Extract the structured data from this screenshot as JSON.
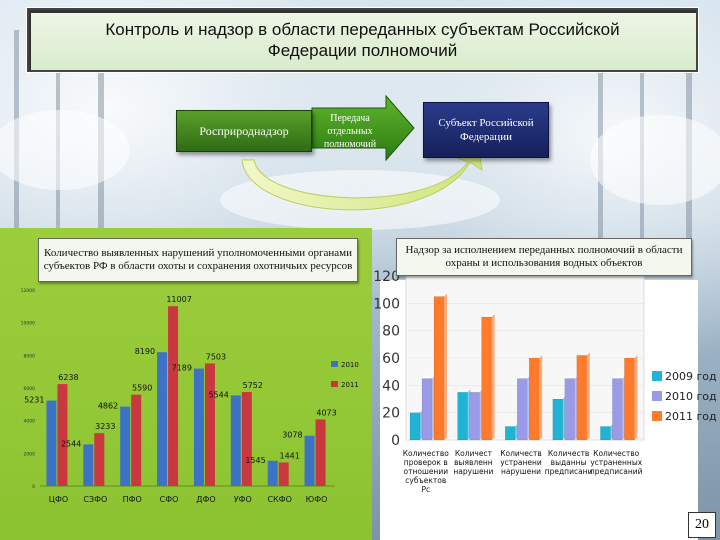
{
  "title": "Контроль и надзор в области переданных субъектам Российской Федерации полномочий",
  "flow": {
    "left_box": "Росприроднадзор",
    "arrow_label": "Передача отдельных полномочий",
    "right_box": "Субъект Российской Федерации"
  },
  "left_chart": {
    "caption": "Количество выявленных нарушений уполномоченными органами субъектов РФ в области охоты и сохранения охотничьих ресурсов",
    "chart_data": {
      "type": "bar",
      "categories": [
        "ЦФО",
        "СЗФО",
        "ПФО",
        "СФО",
        "ДФО",
        "УФО",
        "СКФО",
        "ЮФО"
      ],
      "series": [
        {
          "name": "2010",
          "values": [
            5231,
            2544,
            4862,
            8190,
            7189,
            5544,
            1545,
            3078
          ],
          "color": "#3d73c4"
        },
        {
          "name": "2011",
          "values": [
            6238,
            3233,
            5590,
            11007,
            7503,
            5752,
            1441,
            4073
          ],
          "color": "#c8383e"
        }
      ],
      "ylim": [
        0,
        12000
      ],
      "yticks": [
        "0",
        "2000",
        "4000",
        "6000",
        "8000",
        "10000",
        "12000"
      ],
      "legend": "right"
    }
  },
  "right_chart": {
    "caption": "Надзор за исполнением переданных полномочий в области охраны и использования водных объектов",
    "chart_data": {
      "type": "bar",
      "categories": [
        "Количество проверок в отношении субъектов Рс",
        "Количест выявленн нарушени",
        "Количеств устранени нарушени",
        "Количеств выданны предписани",
        "Количество устраненных предписаний"
      ],
      "series": [
        {
          "name": "2009 год",
          "values": [
            20,
            35,
            10,
            30,
            10
          ],
          "color": "#1fb3d6"
        },
        {
          "name": "2010 год",
          "values": [
            45,
            35,
            45,
            45,
            45
          ],
          "color": "#9a9ae8"
        },
        {
          "name": "2011 год",
          "values": [
            105,
            90,
            60,
            62,
            60
          ],
          "color": "#ff7a2a"
        }
      ],
      "ylim": [
        0,
        120
      ],
      "yticks": [
        "0",
        "20",
        "40",
        "60",
        "80",
        "100",
        "120"
      ],
      "legend": "right"
    }
  },
  "page_number": "20"
}
